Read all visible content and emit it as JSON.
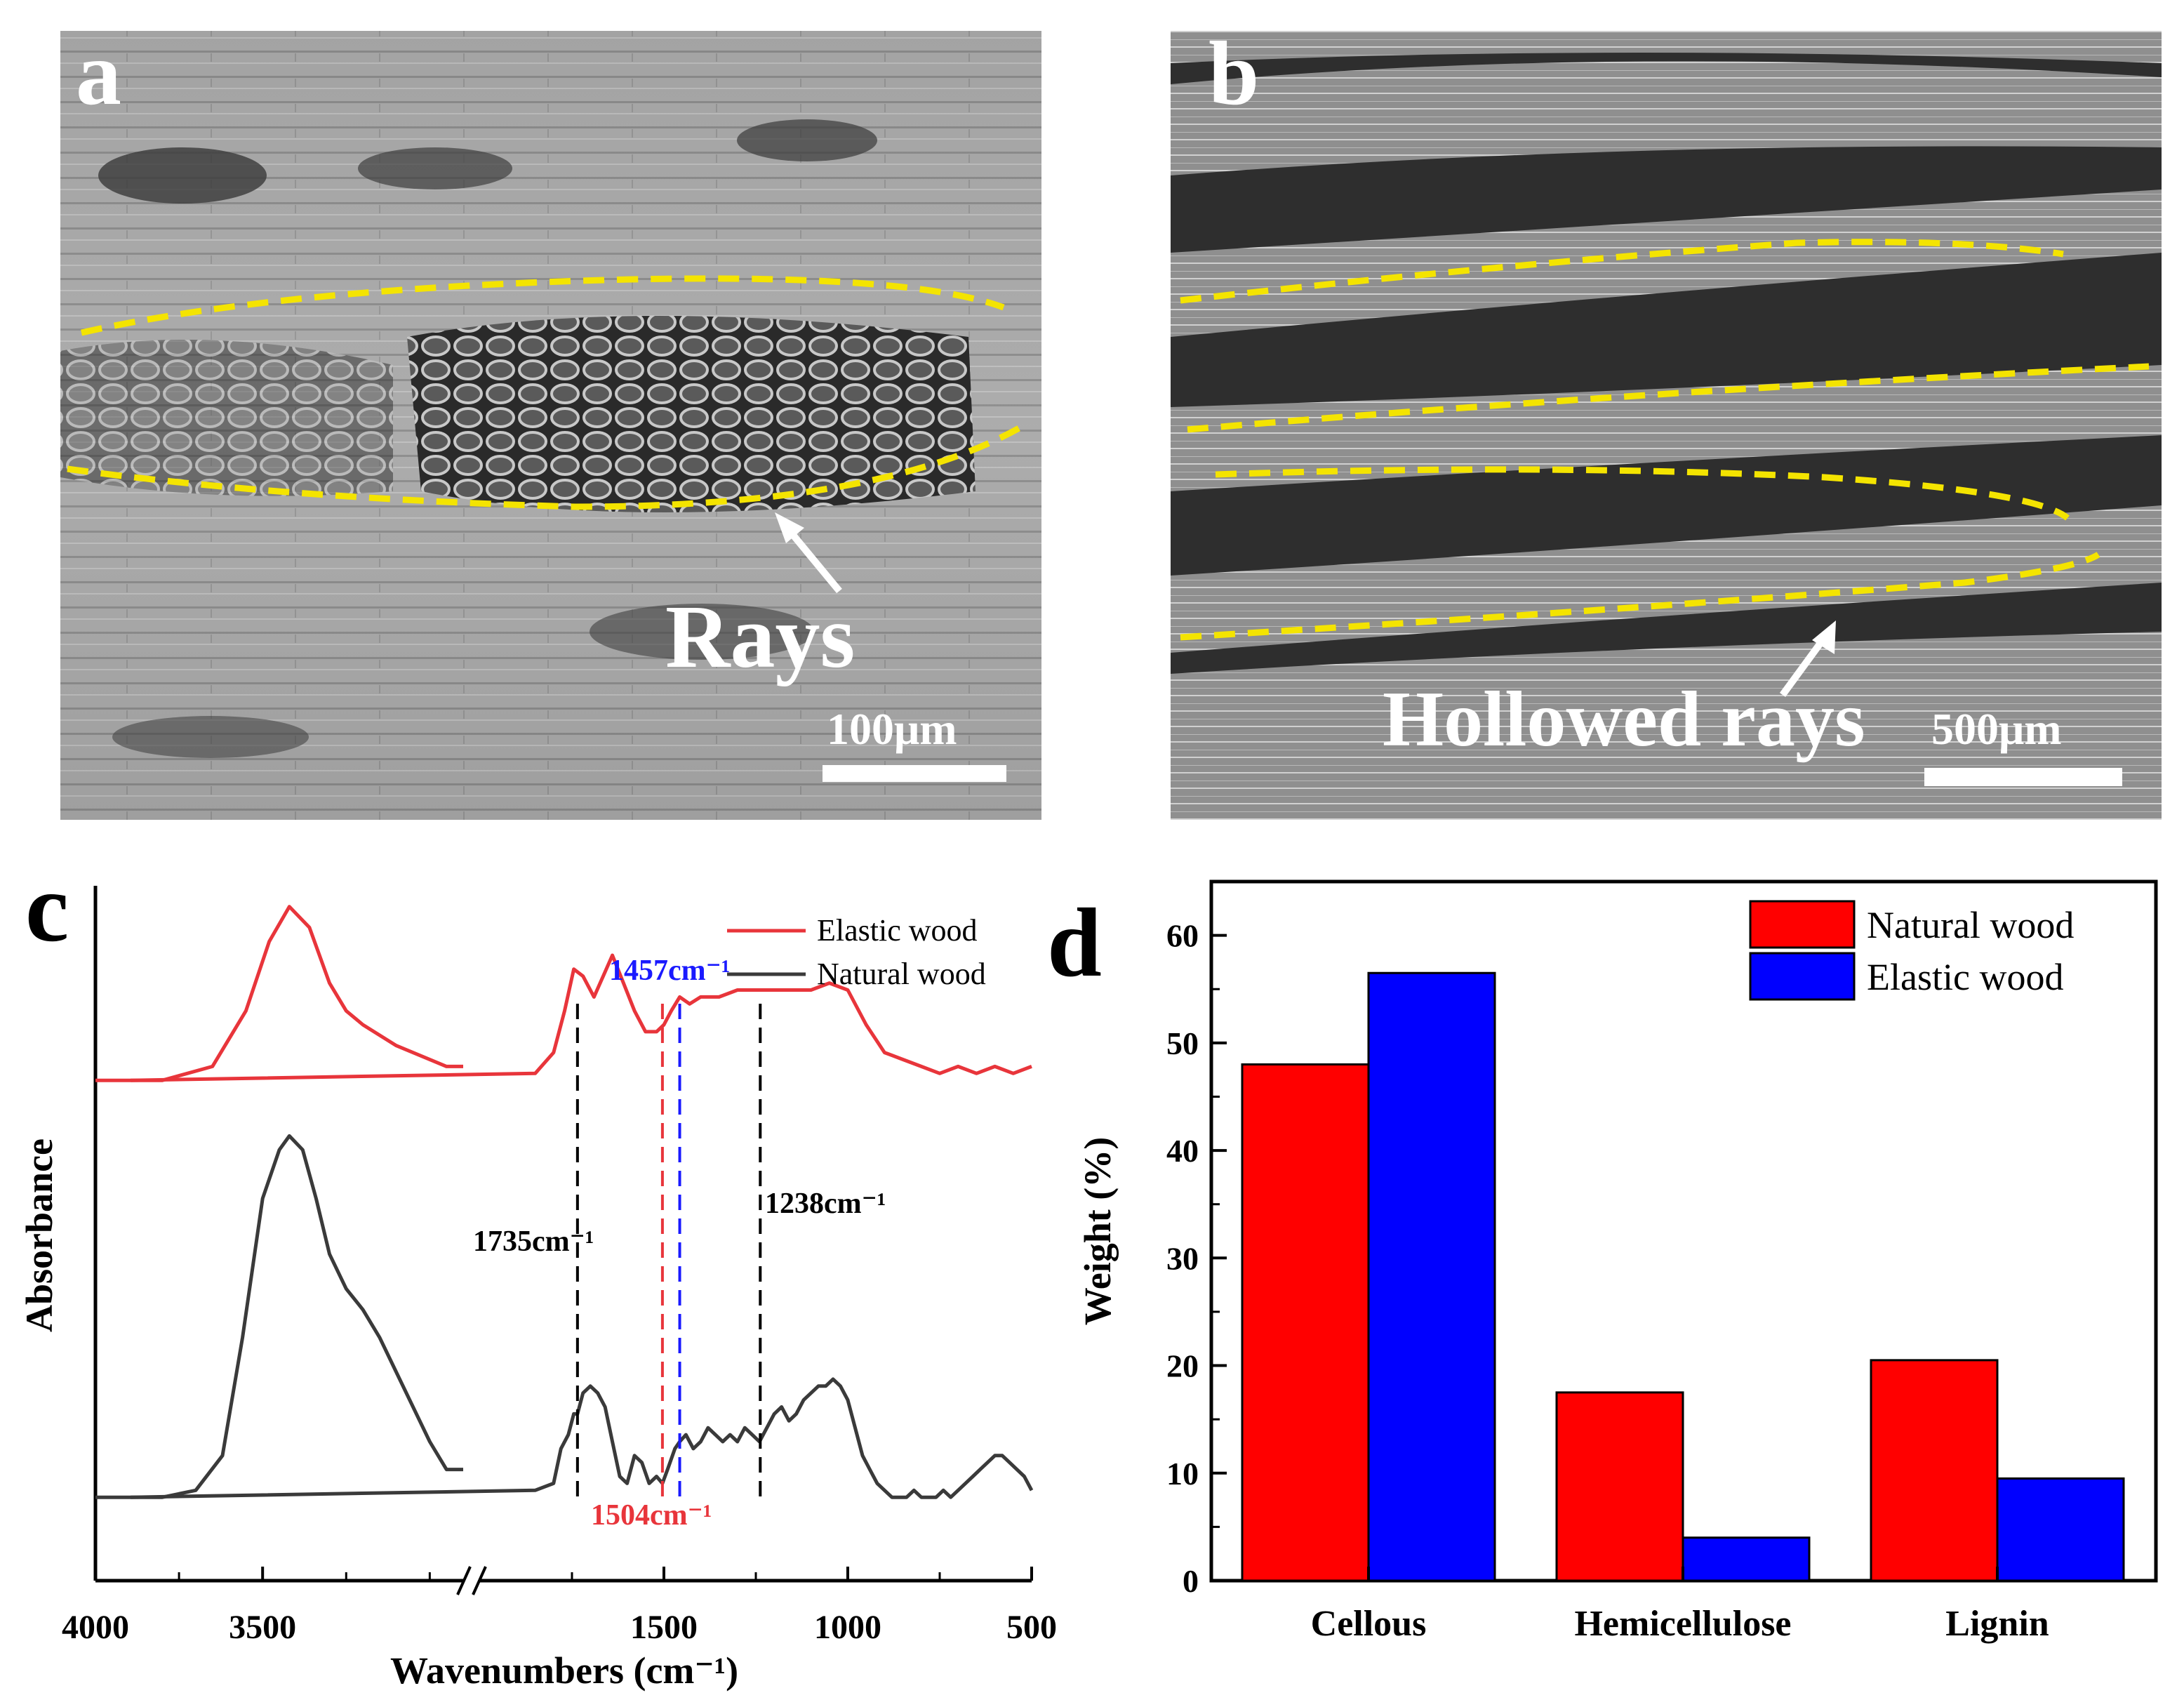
{
  "panels": {
    "a": {
      "label": "a",
      "annotation": "Rays",
      "scale_bar": "100μm"
    },
    "b": {
      "label": "b",
      "annotation": "Hollowed rays",
      "scale_bar": "500μm"
    },
    "c": {
      "label": "c",
      "ylabel": "Absorbance",
      "xlabel": "Wavenumbers (cm⁻¹)",
      "legend": [
        "Elastic wood",
        "Natural wood"
      ],
      "peak_labels": {
        "p1735": "1735cm⁻¹",
        "p1457": "1457cm⁻¹",
        "p1238": "1238cm⁻¹",
        "p1504": "1504cm⁻¹"
      },
      "colors": {
        "elastic": "#e8353b",
        "natural": "#3a3a3a",
        "blue_mark": "#1a1aff",
        "red_mark": "#e8353b"
      }
    },
    "d": {
      "label": "d",
      "colors": {
        "natural": "#ff0000",
        "elastic": "#0000ff"
      }
    }
  },
  "chart_data": [
    {
      "type": "line",
      "panel": "c",
      "xlabel": "Wavenumbers (cm⁻¹)",
      "ylabel": "Absorbance",
      "xlim": [
        4000,
        500
      ],
      "x_ticks": [
        4000,
        3500,
        1500,
        1000,
        500
      ],
      "axis_break": true,
      "legend_position": "top-right",
      "series": [
        {
          "name": "Elastic wood",
          "x": [
            4000,
            3800,
            3650,
            3550,
            3480,
            3420,
            3360,
            3300,
            3250,
            3200,
            3100,
            2950,
            2900,
            2950,
            1850,
            1800,
            1770,
            1745,
            1720,
            1690,
            1665,
            1640,
            1610,
            1580,
            1550,
            1520,
            1500,
            1480,
            1457,
            1430,
            1400,
            1350,
            1300,
            1250,
            1200,
            1150,
            1100,
            1050,
            1000,
            950,
            900,
            850,
            800,
            750,
            700,
            650,
            600,
            550,
            500
          ],
          "y": [
            0.72,
            0.72,
            0.74,
            0.82,
            0.92,
            0.97,
            0.94,
            0.86,
            0.82,
            0.8,
            0.77,
            0.74,
            0.74,
            0.72,
            0.73,
            0.76,
            0.82,
            0.88,
            0.87,
            0.84,
            0.87,
            0.9,
            0.86,
            0.82,
            0.79,
            0.79,
            0.8,
            0.82,
            0.84,
            0.83,
            0.84,
            0.84,
            0.85,
            0.85,
            0.85,
            0.85,
            0.85,
            0.86,
            0.85,
            0.8,
            0.76,
            0.75,
            0.74,
            0.73,
            0.74,
            0.73,
            0.74,
            0.73,
            0.74
          ]
        },
        {
          "name": "Natural wood",
          "x": [
            4000,
            3800,
            3700,
            3620,
            3560,
            3500,
            3450,
            3420,
            3380,
            3340,
            3300,
            3250,
            3200,
            3150,
            3100,
            3000,
            2950,
            2900,
            2950,
            1850,
            1800,
            1780,
            1760,
            1745,
            1735,
            1720,
            1700,
            1680,
            1660,
            1640,
            1620,
            1600,
            1580,
            1560,
            1540,
            1520,
            1504,
            1490,
            1470,
            1457,
            1440,
            1420,
            1400,
            1380,
            1360,
            1340,
            1320,
            1300,
            1280,
            1260,
            1240,
            1220,
            1200,
            1180,
            1160,
            1140,
            1120,
            1100,
            1080,
            1060,
            1040,
            1020,
            1000,
            980,
            960,
            940,
            920,
            900,
            880,
            860,
            840,
            820,
            800,
            780,
            760,
            740,
            720,
            700,
            680,
            660,
            640,
            620,
            600,
            580,
            560,
            540,
            520,
            500
          ],
          "y": [
            0.12,
            0.12,
            0.13,
            0.18,
            0.35,
            0.55,
            0.62,
            0.64,
            0.62,
            0.55,
            0.47,
            0.42,
            0.39,
            0.35,
            0.3,
            0.2,
            0.16,
            0.16,
            0.12,
            0.13,
            0.14,
            0.19,
            0.21,
            0.24,
            0.24,
            0.27,
            0.28,
            0.27,
            0.25,
            0.2,
            0.15,
            0.14,
            0.18,
            0.17,
            0.14,
            0.15,
            0.14,
            0.16,
            0.19,
            0.2,
            0.21,
            0.19,
            0.2,
            0.22,
            0.21,
            0.2,
            0.21,
            0.2,
            0.22,
            0.21,
            0.2,
            0.22,
            0.24,
            0.25,
            0.23,
            0.24,
            0.26,
            0.27,
            0.28,
            0.28,
            0.29,
            0.28,
            0.26,
            0.22,
            0.18,
            0.16,
            0.14,
            0.13,
            0.12,
            0.12,
            0.12,
            0.13,
            0.12,
            0.12,
            0.12,
            0.13,
            0.12,
            0.13,
            0.14,
            0.15,
            0.16,
            0.17,
            0.18,
            0.18,
            0.17,
            0.16,
            0.15,
            0.13
          ]
        }
      ],
      "reference_lines": [
        1735,
        1504,
        1457,
        1238
      ],
      "annotations": [
        "1735cm⁻¹",
        "1457cm⁻¹",
        "1238cm⁻¹",
        "1504cm⁻¹"
      ]
    },
    {
      "type": "bar",
      "panel": "d",
      "categories": [
        "Cellous",
        "Hemicellulose",
        "Lignin"
      ],
      "series": [
        {
          "name": "Natural wood",
          "values": [
            48,
            17.5,
            20.5
          ]
        },
        {
          "name": "Elastic wood",
          "values": [
            56.5,
            4,
            9.5
          ]
        }
      ],
      "ylabel": "Weight (%)",
      "ylim": [
        0,
        65
      ],
      "y_ticks": [
        0,
        10,
        20,
        30,
        40,
        50,
        60
      ],
      "legend_position": "top-right"
    }
  ]
}
